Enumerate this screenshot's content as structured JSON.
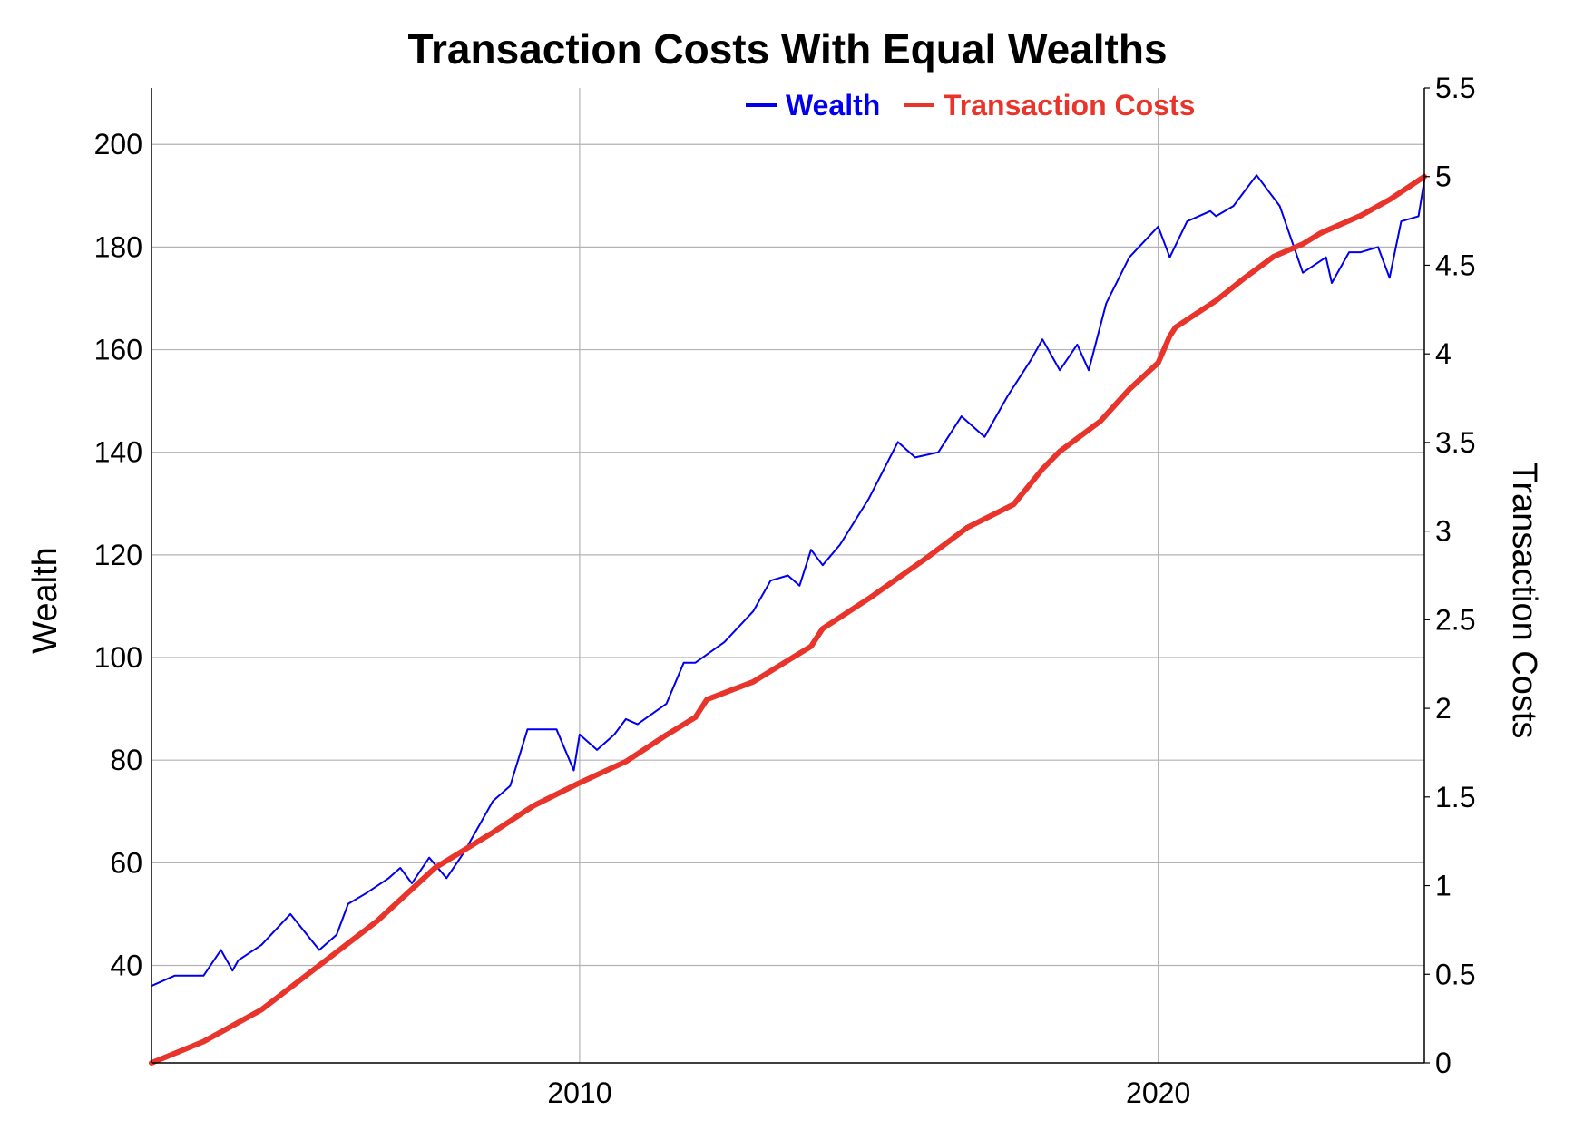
{
  "chart_data": {
    "type": "line",
    "title": "Transaction Costs With Equal Wealths",
    "xlabel": "",
    "ylabel": "Wealth",
    "y2label": "Transaction Costs",
    "x_ticks": [
      2010,
      2020
    ],
    "x_range": [
      2002.6,
      2024.6
    ],
    "ylim": [
      21,
      211
    ],
    "y_ticks": [
      40,
      60,
      80,
      100,
      120,
      140,
      160,
      180,
      200
    ],
    "y2lim": [
      0,
      5.5
    ],
    "y2_ticks": [
      "0",
      "0.5",
      "1",
      "1.5",
      "2",
      "2.5",
      "3",
      "3.5",
      "4",
      "4.5",
      "5",
      "5.5"
    ],
    "grid": true,
    "legend_placement": "top",
    "series": [
      {
        "name": "Wealth",
        "axis": "left",
        "color": "#0000ee",
        "x": [
          2002.6,
          2003.0,
          2003.5,
          2003.8,
          2004.0,
          2004.1,
          2004.5,
          2005.0,
          2005.5,
          2005.8,
          2006.0,
          2006.3,
          2006.7,
          2006.9,
          2007.1,
          2007.4,
          2007.7,
          2008.0,
          2008.5,
          2008.8,
          2009.1,
          2009.6,
          2009.9,
          2010.0,
          2010.3,
          2010.6,
          2010.8,
          2011.0,
          2011.5,
          2011.8,
          2012.0,
          2012.5,
          2013.0,
          2013.3,
          2013.6,
          2013.8,
          2014.0,
          2014.2,
          2014.5,
          2015.0,
          2015.5,
          2015.8,
          2016.2,
          2016.6,
          2017.0,
          2017.4,
          2017.8,
          2018.0,
          2018.3,
          2018.6,
          2018.8,
          2019.1,
          2019.5,
          2020.0,
          2020.2,
          2020.5,
          2020.9,
          2021.0,
          2021.3,
          2021.7,
          2021.9,
          2022.1,
          2022.5,
          2022.9,
          2023.0,
          2023.3,
          2023.5,
          2023.8,
          2024.0,
          2024.2,
          2024.5,
          2024.6
        ],
        "y": [
          36,
          38,
          38,
          43,
          39,
          41,
          44,
          50,
          43,
          46,
          52,
          54,
          57,
          59,
          56,
          61,
          57,
          62,
          72,
          75,
          86,
          86,
          78,
          85,
          82,
          85,
          88,
          87,
          91,
          99,
          99,
          103,
          109,
          115,
          116,
          114,
          121,
          118,
          122,
          131,
          142,
          139,
          140,
          147,
          143,
          151,
          158,
          162,
          156,
          161,
          156,
          169,
          178,
          184,
          178,
          185,
          187,
          186,
          188,
          194,
          191,
          188,
          175,
          178,
          173,
          179,
          179,
          180,
          174,
          185,
          186,
          193
        ]
      },
      {
        "name": "Transaction Costs",
        "axis": "right",
        "color": "#e8342a",
        "x": [
          2002.6,
          2003.5,
          2004.5,
          2005.5,
          2006.5,
          2007.5,
          2008.5,
          2009.2,
          2010.0,
          2010.8,
          2011.5,
          2012.0,
          2012.2,
          2013.0,
          2013.5,
          2014.0,
          2014.2,
          2015.0,
          2016.0,
          2016.7,
          2017.5,
          2018.0,
          2018.3,
          2019.0,
          2019.5,
          2020.0,
          2020.2,
          2020.3,
          2021.0,
          2021.5,
          2022.0,
          2022.5,
          2022.8,
          2023.5,
          2024.0,
          2024.6
        ],
        "y": [
          0,
          0.12,
          0.3,
          0.55,
          0.8,
          1.1,
          1.3,
          1.45,
          1.58,
          1.7,
          1.85,
          1.95,
          2.05,
          2.15,
          2.25,
          2.35,
          2.45,
          2.62,
          2.85,
          3.02,
          3.15,
          3.35,
          3.45,
          3.62,
          3.8,
          3.95,
          4.1,
          4.15,
          4.3,
          4.43,
          4.55,
          4.62,
          4.68,
          4.78,
          4.87,
          5.0
        ]
      }
    ]
  }
}
